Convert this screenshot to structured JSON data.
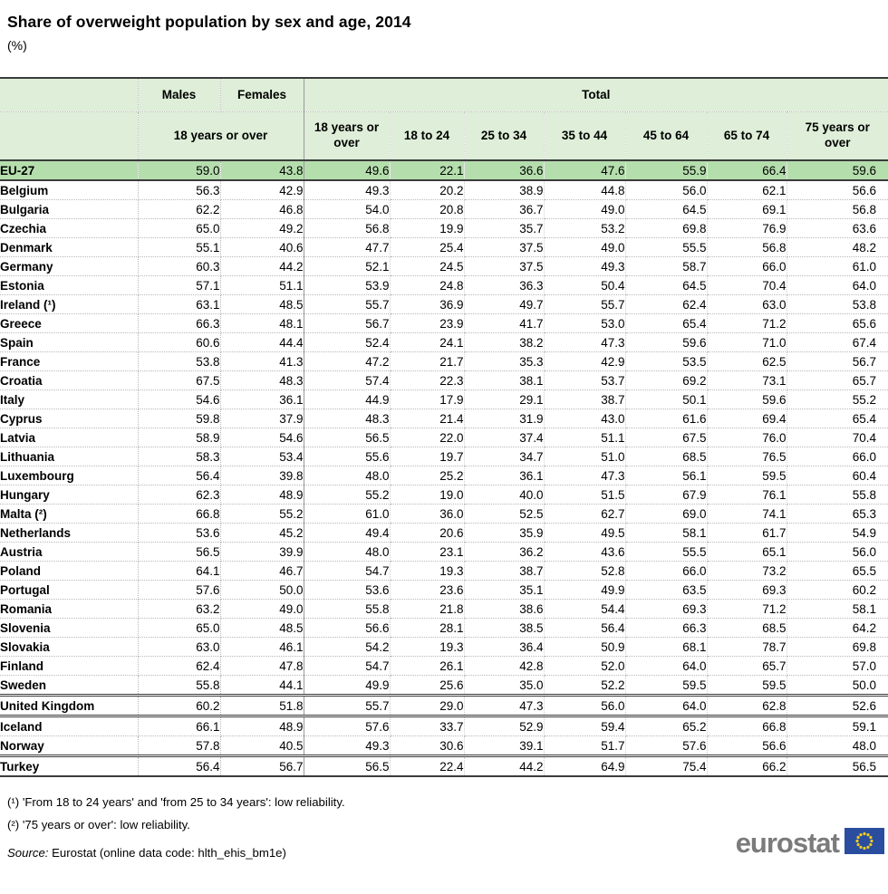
{
  "chart_data": {
    "type": "table",
    "title": "Share of overweight population by sex and age, 2014",
    "unit": "(%)",
    "column_groups": [
      {
        "label": "",
        "colspan": 1
      },
      {
        "label": "Males",
        "colspan": 1
      },
      {
        "label": "Females",
        "colspan": 1
      },
      {
        "label": "Total",
        "colspan": 7
      }
    ],
    "sub_columns": [
      {
        "label": "",
        "colspan": 1
      },
      {
        "label": "18 years or over",
        "colspan": 2
      },
      {
        "label": "18 years or over",
        "colspan": 1
      },
      {
        "label": "18 to 24",
        "colspan": 1
      },
      {
        "label": "25 to 34",
        "colspan": 1
      },
      {
        "label": "35 to 44",
        "colspan": 1
      },
      {
        "label": "45 to 64",
        "colspan": 1
      },
      {
        "label": "65 to 74",
        "colspan": 1
      },
      {
        "label": "75 years or over",
        "colspan": 1
      }
    ],
    "rows": [
      {
        "label": "EU-27",
        "highlight": true,
        "values": [
          "59.0",
          "43.8",
          "49.6",
          "22.1",
          "36.6",
          "47.6",
          "55.9",
          "66.4",
          "59.6"
        ]
      },
      {
        "label": "Belgium",
        "values": [
          "56.3",
          "42.9",
          "49.3",
          "20.2",
          "38.9",
          "44.8",
          "56.0",
          "62.1",
          "56.6"
        ]
      },
      {
        "label": "Bulgaria",
        "values": [
          "62.2",
          "46.8",
          "54.0",
          "20.8",
          "36.7",
          "49.0",
          "64.5",
          "69.1",
          "56.8"
        ]
      },
      {
        "label": "Czechia",
        "values": [
          "65.0",
          "49.2",
          "56.8",
          "19.9",
          "35.7",
          "53.2",
          "69.8",
          "76.9",
          "63.6"
        ]
      },
      {
        "label": "Denmark",
        "values": [
          "55.1",
          "40.6",
          "47.7",
          "25.4",
          "37.5",
          "49.0",
          "55.5",
          "56.8",
          "48.2"
        ]
      },
      {
        "label": "Germany",
        "values": [
          "60.3",
          "44.2",
          "52.1",
          "24.5",
          "37.5",
          "49.3",
          "58.7",
          "66.0",
          "61.0"
        ]
      },
      {
        "label": "Estonia",
        "values": [
          "57.1",
          "51.1",
          "53.9",
          "24.8",
          "36.3",
          "50.4",
          "64.5",
          "70.4",
          "64.0"
        ]
      },
      {
        "label": "Ireland (¹)",
        "values": [
          "63.1",
          "48.5",
          "55.7",
          "36.9",
          "49.7",
          "55.7",
          "62.4",
          "63.0",
          "53.8"
        ]
      },
      {
        "label": "Greece",
        "values": [
          "66.3",
          "48.1",
          "56.7",
          "23.9",
          "41.7",
          "53.0",
          "65.4",
          "71.2",
          "65.6"
        ]
      },
      {
        "label": "Spain",
        "values": [
          "60.6",
          "44.4",
          "52.4",
          "24.1",
          "38.2",
          "47.3",
          "59.6",
          "71.0",
          "67.4"
        ]
      },
      {
        "label": "France",
        "values": [
          "53.8",
          "41.3",
          "47.2",
          "21.7",
          "35.3",
          "42.9",
          "53.5",
          "62.5",
          "56.7"
        ]
      },
      {
        "label": "Croatia",
        "values": [
          "67.5",
          "48.3",
          "57.4",
          "22.3",
          "38.1",
          "53.7",
          "69.2",
          "73.1",
          "65.7"
        ]
      },
      {
        "label": "Italy",
        "values": [
          "54.6",
          "36.1",
          "44.9",
          "17.9",
          "29.1",
          "38.7",
          "50.1",
          "59.6",
          "55.2"
        ]
      },
      {
        "label": "Cyprus",
        "values": [
          "59.8",
          "37.9",
          "48.3",
          "21.4",
          "31.9",
          "43.0",
          "61.6",
          "69.4",
          "65.4"
        ]
      },
      {
        "label": "Latvia",
        "values": [
          "58.9",
          "54.6",
          "56.5",
          "22.0",
          "37.4",
          "51.1",
          "67.5",
          "76.0",
          "70.4"
        ]
      },
      {
        "label": "Lithuania",
        "values": [
          "58.3",
          "53.4",
          "55.6",
          "19.7",
          "34.7",
          "51.0",
          "68.5",
          "76.5",
          "66.0"
        ]
      },
      {
        "label": "Luxembourg",
        "values": [
          "56.4",
          "39.8",
          "48.0",
          "25.2",
          "36.1",
          "47.3",
          "56.1",
          "59.5",
          "60.4"
        ]
      },
      {
        "label": "Hungary",
        "values": [
          "62.3",
          "48.9",
          "55.2",
          "19.0",
          "40.0",
          "51.5",
          "67.9",
          "76.1",
          "55.8"
        ]
      },
      {
        "label": "Malta (²)",
        "values": [
          "66.8",
          "55.2",
          "61.0",
          "36.0",
          "52.5",
          "62.7",
          "69.0",
          "74.1",
          "65.3"
        ]
      },
      {
        "label": "Netherlands",
        "values": [
          "53.6",
          "45.2",
          "49.4",
          "20.6",
          "35.9",
          "49.5",
          "58.1",
          "61.7",
          "54.9"
        ]
      },
      {
        "label": "Austria",
        "values": [
          "56.5",
          "39.9",
          "48.0",
          "23.1",
          "36.2",
          "43.6",
          "55.5",
          "65.1",
          "56.0"
        ]
      },
      {
        "label": "Poland",
        "values": [
          "64.1",
          "46.7",
          "54.7",
          "19.3",
          "38.7",
          "52.8",
          "66.0",
          "73.2",
          "65.5"
        ]
      },
      {
        "label": "Portugal",
        "values": [
          "57.6",
          "50.0",
          "53.6",
          "23.6",
          "35.1",
          "49.9",
          "63.5",
          "69.3",
          "60.2"
        ]
      },
      {
        "label": "Romania",
        "values": [
          "63.2",
          "49.0",
          "55.8",
          "21.8",
          "38.6",
          "54.4",
          "69.3",
          "71.2",
          "58.1"
        ]
      },
      {
        "label": "Slovenia",
        "values": [
          "65.0",
          "48.5",
          "56.6",
          "28.1",
          "38.5",
          "56.4",
          "66.3",
          "68.5",
          "64.2"
        ]
      },
      {
        "label": "Slovakia",
        "values": [
          "63.0",
          "46.1",
          "54.2",
          "19.3",
          "36.4",
          "50.9",
          "68.1",
          "78.7",
          "69.8"
        ]
      },
      {
        "label": "Finland",
        "values": [
          "62.4",
          "47.8",
          "54.7",
          "26.1",
          "42.8",
          "52.0",
          "64.0",
          "65.7",
          "57.0"
        ]
      },
      {
        "label": "Sweden",
        "values": [
          "55.8",
          "44.1",
          "49.9",
          "25.6",
          "35.0",
          "52.2",
          "59.5",
          "59.5",
          "50.0"
        ]
      },
      {
        "label": "United Kingdom",
        "section_start": true,
        "values": [
          "60.2",
          "51.8",
          "55.7",
          "29.0",
          "47.3",
          "56.0",
          "64.0",
          "62.8",
          "52.6"
        ]
      },
      {
        "label": "Iceland",
        "section_start": true,
        "values": [
          "66.1",
          "48.9",
          "57.6",
          "33.7",
          "52.9",
          "59.4",
          "65.2",
          "66.8",
          "59.1"
        ]
      },
      {
        "label": "Norway",
        "values": [
          "57.8",
          "40.5",
          "49.3",
          "30.6",
          "39.1",
          "51.7",
          "57.6",
          "56.6",
          "48.0"
        ]
      },
      {
        "label": "Turkey",
        "section_start": true,
        "values": [
          "56.4",
          "56.7",
          "56.5",
          "22.4",
          "44.2",
          "64.9",
          "75.4",
          "66.2",
          "56.5"
        ]
      }
    ]
  },
  "footnotes": [
    "(¹)  'From 18 to 24 years' and 'from 25 to 34 years': low reliability.",
    "(²) '75 years or over': low reliability."
  ],
  "source": {
    "label": "Source:",
    "text": " Eurostat (online data code: hlth_ehis_bm1e)"
  },
  "logo": {
    "text": "eurostat",
    "flag_blue": "#2a4d9f",
    "star_yellow": "#f0cd1f"
  },
  "colors": {
    "header_bg": "#deeed8",
    "highlight_bg": "#b5dead",
    "border_dark": "#3b3b3b"
  }
}
